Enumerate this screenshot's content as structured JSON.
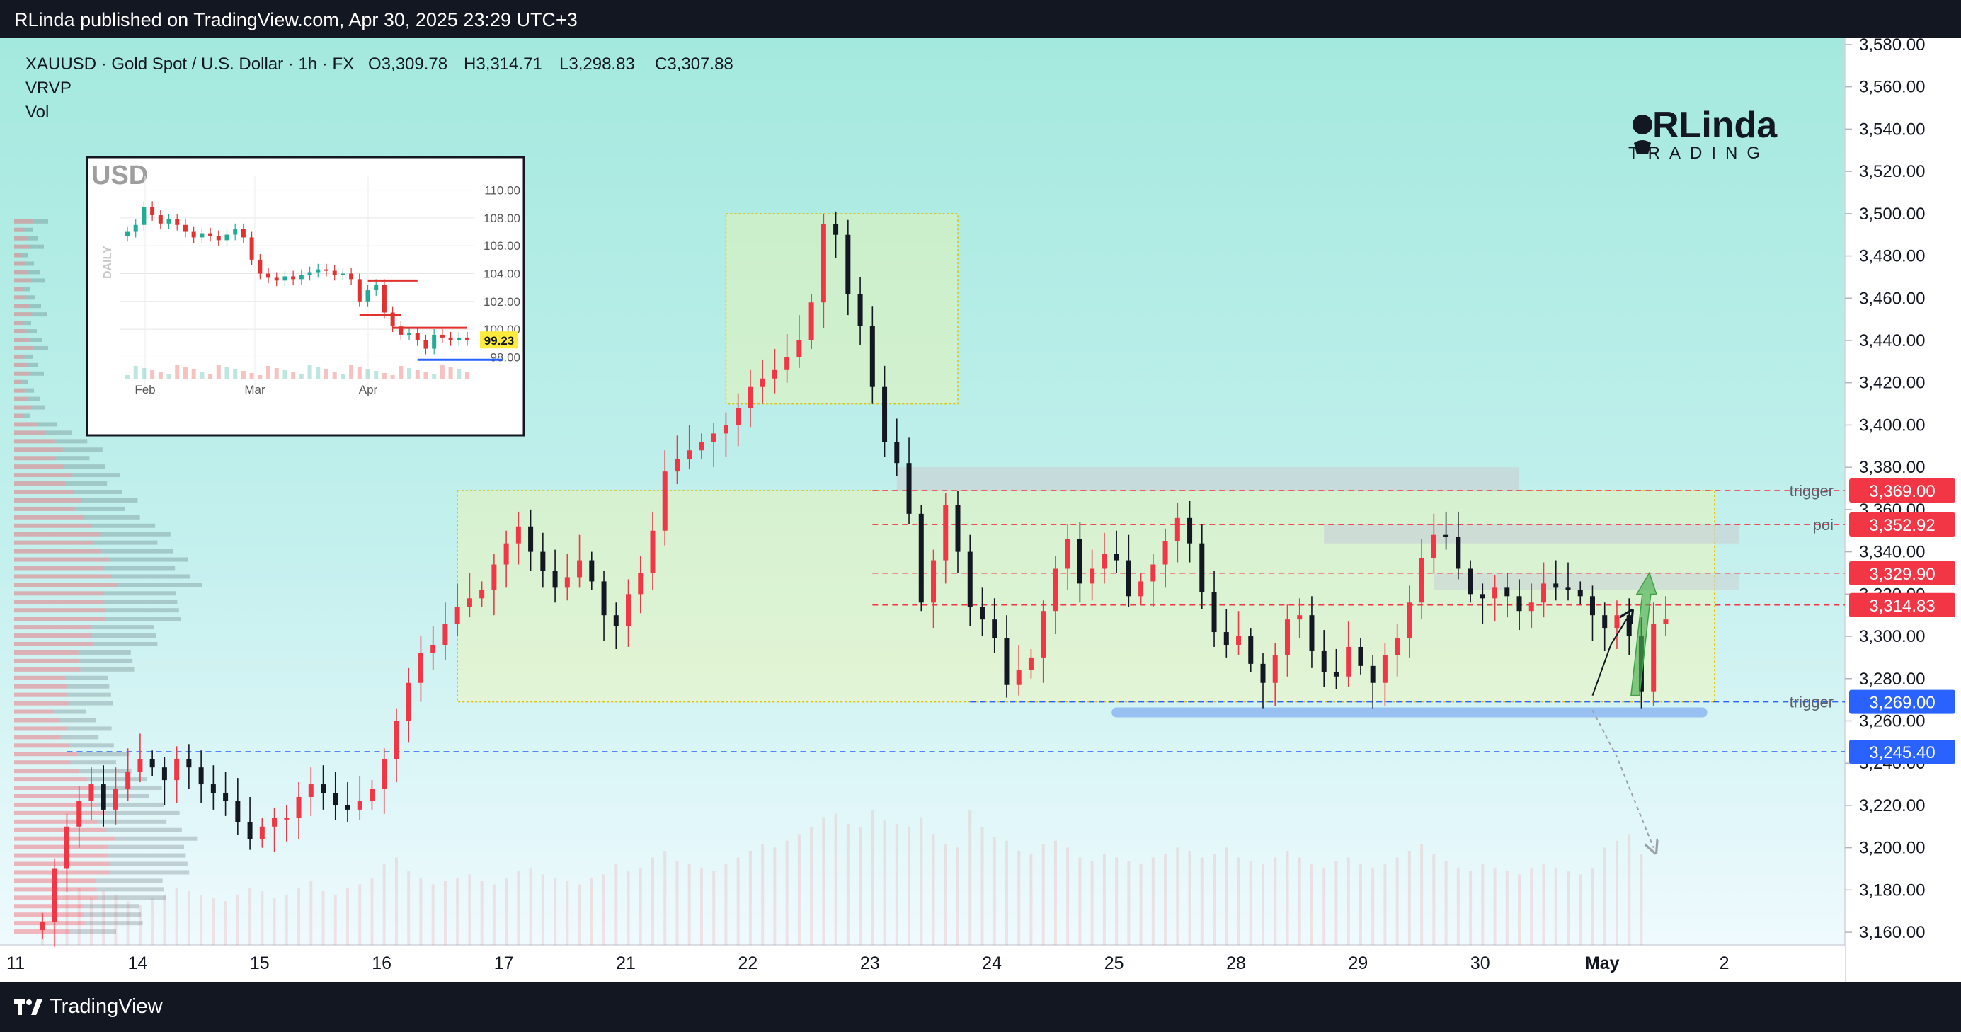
{
  "header": {
    "published": "RLinda published on TradingView.com, Apr 30, 2025 23:29 UTC+3"
  },
  "footer": {
    "brand": "TradingView"
  },
  "legend": {
    "symbol": "XAUUSD · Gold Spot / U.S. Dollar · 1h · FX",
    "ohlc": [
      {
        "key": "O",
        "value": "3,309.78"
      },
      {
        "key": "H",
        "value": "3,314.71"
      },
      {
        "key": "L",
        "value": "3,298.83"
      },
      {
        "key": "C",
        "value": "3,307.88"
      }
    ],
    "indicators": [
      "VRVP",
      "Vol"
    ]
  },
  "watermark": {
    "top": "RLinda",
    "bottom": "TRADING"
  },
  "inset": {
    "title": "USD",
    "side_label": "DAILY",
    "ticks": [
      "110.00",
      "108.00",
      "106.00",
      "104.00",
      "102.00",
      "100.00",
      "98.00"
    ],
    "tick_values": [
      110,
      108,
      106,
      104,
      102,
      100,
      98
    ],
    "months": [
      "Feb",
      "Mar",
      "Apr"
    ],
    "last_price": "99.23",
    "closes": [
      107.0,
      107.5,
      108.8,
      108.2,
      107.6,
      107.9,
      107.5,
      107.0,
      106.6,
      106.9,
      106.7,
      106.4,
      106.8,
      107.2,
      106.6,
      105.0,
      104.0,
      103.7,
      103.5,
      103.8,
      103.6,
      103.9,
      104.1,
      104.3,
      104.2,
      103.9,
      104.0,
      103.6,
      102.0,
      102.8,
      103.2,
      101.2,
      100.2,
      99.6,
      99.7,
      99.2,
      98.6,
      99.6,
      99.4,
      99.2,
      99.4,
      99.2
    ],
    "colors": {
      "bg": "#ffffff",
      "up": "#22ab94",
      "down": "#e1322f",
      "level": "#e1322f",
      "support": "#2962ff",
      "label_bg": "#ffeb3b"
    }
  },
  "annotations": [
    {
      "label": "trigger",
      "value": 3369.0,
      "price_label": "3,369.00",
      "color": "#f23645"
    },
    {
      "label": "poi",
      "value": 3352.92,
      "price_label": "3,352.92",
      "color": "#f23645"
    },
    {
      "label": "",
      "value": 3329.9,
      "price_label": "3,329.90",
      "color": "#f23645"
    },
    {
      "label": "",
      "value": 3314.83,
      "price_label": "3,314.83",
      "color": "#f23645"
    },
    {
      "label": "trigger",
      "value": 3269.0,
      "price_label": "3,269.00",
      "color": "#2962ff"
    },
    {
      "label": "",
      "value": 3245.4,
      "price_label": "3,245.40",
      "color": "#2962ff"
    }
  ],
  "chart_data": {
    "type": "candlestick",
    "symbol": "XAUUSD",
    "interval": "1h",
    "y_ticks": [
      3580,
      3560,
      3540,
      3520,
      3500,
      3480,
      3460,
      3440,
      3420,
      3400,
      3380,
      3360,
      3340,
      3320,
      3300,
      3280,
      3260,
      3240,
      3220,
      3200,
      3180,
      3160
    ],
    "y_tick_labels": [
      "3,580.00",
      "3,560.00",
      "3,540.00",
      "3,520.00",
      "3,500.00",
      "3,480.00",
      "3,460.00",
      "3,440.00",
      "3,420.00",
      "3,400.00",
      "3,380.00",
      "3,360.00",
      "3,340.00",
      "3,320.00",
      "3,300.00",
      "3,280.00",
      "3,260.00",
      "3,240.00",
      "3,220.00",
      "3,200.00",
      "3,180.00",
      "3,160.00"
    ],
    "ylim": [
      3154,
      3583
    ],
    "x_labels": [
      "11",
      "14",
      "15",
      "16",
      "17",
      "21",
      "22",
      "23",
      "24",
      "25",
      "28",
      "29",
      "30",
      "May",
      "2"
    ],
    "x_label_index": [
      0,
      10,
      20,
      30,
      40,
      50,
      60,
      70,
      80,
      90,
      100,
      110,
      120,
      130,
      140
    ],
    "x_range": [
      0,
      150
    ],
    "closes": [
      3165,
      3190,
      3210,
      3222,
      3230,
      3218,
      3228,
      3236,
      3242,
      3238,
      3232,
      3242,
      3238,
      3230,
      3226,
      3222,
      3212,
      3204,
      3210,
      3214,
      3214,
      3224,
      3230,
      3226,
      3220,
      3218,
      3222,
      3228,
      3242,
      3260,
      3278,
      3292,
      3296,
      3306,
      3314,
      3318,
      3322,
      3334,
      3344,
      3352,
      3340,
      3331,
      3323,
      3328,
      3336,
      3326,
      3310,
      3305,
      3320,
      3330,
      3350,
      3378,
      3384,
      3388,
      3392,
      3396,
      3400,
      3408,
      3418,
      3422,
      3426,
      3432,
      3440,
      3458,
      3495,
      3490,
      3462,
      3447,
      3418,
      3392,
      3382,
      3358,
      3316,
      3336,
      3362,
      3340,
      3314,
      3308,
      3299,
      3277,
      3284,
      3290,
      3312,
      3332,
      3346,
      3325,
      3332,
      3339,
      3336,
      3319,
      3326,
      3334,
      3345,
      3356,
      3344,
      3321,
      3302,
      3296,
      3300,
      3287,
      3278,
      3291,
      3308,
      3310,
      3293,
      3283,
      3281,
      3295,
      3286,
      3278,
      3291,
      3299,
      3316,
      3337,
      3348,
      3347,
      3332,
      3320,
      3318,
      3323,
      3319,
      3312,
      3316,
      3325,
      3323,
      3322,
      3319,
      3310,
      3304,
      3310,
      3300,
      3274,
      3306,
      3308
    ],
    "volumes": [
      20,
      26,
      30,
      34,
      28,
      32,
      30,
      26,
      24,
      28,
      30,
      34,
      32,
      30,
      28,
      26,
      30,
      34,
      32,
      28,
      30,
      34,
      38,
      32,
      30,
      34,
      36,
      40,
      48,
      52,
      44,
      40,
      36,
      38,
      40,
      42,
      38,
      36,
      40,
      44,
      46,
      42,
      40,
      38,
      36,
      40,
      42,
      48,
      44,
      46,
      52,
      56,
      50,
      48,
      46,
      44,
      48,
      52,
      56,
      60,
      58,
      62,
      66,
      70,
      76,
      78,
      72,
      70,
      80,
      74,
      72,
      70,
      76,
      66,
      60,
      58,
      80,
      70,
      64,
      62,
      56,
      54,
      60,
      62,
      58,
      52,
      50,
      54,
      52,
      50,
      48,
      52,
      54,
      58,
      56,
      52,
      54,
      58,
      52,
      50,
      48,
      52,
      56,
      52,
      48,
      46,
      50,
      52,
      48,
      46,
      48,
      52,
      56,
      60,
      54,
      50,
      46,
      44,
      48,
      46,
      44,
      42,
      46,
      48,
      46,
      44,
      42,
      46,
      58,
      62,
      66,
      54
    ],
    "zones": [
      {
        "name": "range",
        "x0": 34,
        "x1": 137,
        "y0": 3269.0,
        "y1": 3369.0,
        "color": "#fff59d"
      },
      {
        "name": "spike",
        "x0": 56,
        "x1": 75,
        "y0": 3410,
        "y1": 3500,
        "color": "#fff59d"
      }
    ],
    "forecast": [
      [
        127,
        3272
      ],
      [
        128.5,
        3296
      ],
      [
        130,
        3310
      ]
    ],
    "projection": [
      [
        127,
        3265
      ],
      [
        129,
        3243
      ],
      [
        132,
        3200
      ]
    ],
    "colors": {
      "up": "#f23645",
      "down": "#131722",
      "bg_top": "#a7eadf",
      "bg_bottom": "#f2fbff"
    }
  }
}
